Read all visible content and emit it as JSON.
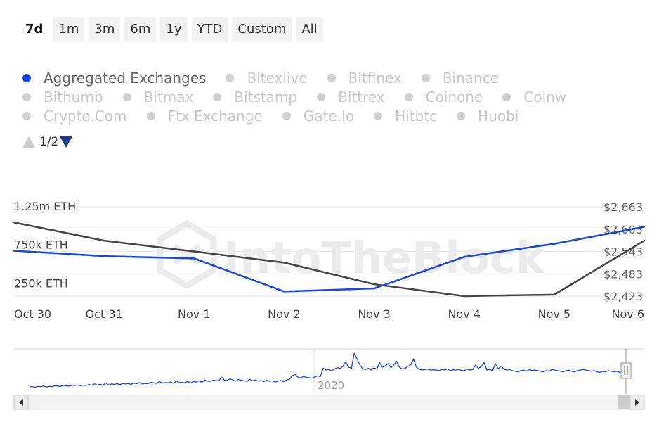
{
  "range_selector": {
    "buttons": [
      "7d",
      "1m",
      "3m",
      "6m",
      "1y",
      "YTD",
      "Custom",
      "All"
    ],
    "active": "7d"
  },
  "legend": {
    "rows": [
      [
        "Aggregated Exchanges",
        "Bitexlive",
        "Bitfinex",
        "Binance"
      ],
      [
        "Bithumb",
        "Bitmax",
        "Bitstamp",
        "Bittrex",
        "Coinone",
        "Coinw"
      ],
      [
        "Crypto.Com",
        "Ftx Exchange",
        "Gate.Io",
        "Hitbtc",
        "Huobi"
      ]
    ],
    "active": "Aggregated Exchanges",
    "pager": "1/2"
  },
  "watermark": "IntoTheBlock",
  "colors": {
    "volume_line": "#1546e8",
    "price_line": "#444444",
    "navigator_line": "#1546e8",
    "grid": "#e6e6e6"
  },
  "chart_data": {
    "type": "line",
    "x": [
      "Oct 30",
      "Oct 31",
      "Nov 1",
      "Nov 2",
      "Nov 3",
      "Nov 4",
      "Nov 5",
      "Nov 6"
    ],
    "y_left": {
      "ticks": [
        "1.25m ETH",
        "750k ETH",
        "250k ETH"
      ],
      "tick_values": [
        1250000,
        750000,
        250000
      ],
      "range": [
        180000,
        1350000
      ]
    },
    "y_right": {
      "ticks": [
        "$2,663",
        "$2,603",
        "$2,543",
        "$2,483",
        "$2,423"
      ],
      "tick_values": [
        2663,
        2603,
        2543,
        2483,
        2423
      ],
      "range": [
        2423,
        2663
      ]
    },
    "series": [
      {
        "axis": "left",
        "values": [
          770000,
          700000,
          670000,
          240000,
          280000,
          690000,
          860000,
          1080000
        ]
      },
      {
        "axis": "right",
        "values": [
          2621,
          2572,
          2543,
          2513,
          2455,
          2423,
          2427,
          2572
        ]
      }
    ],
    "navigator": {
      "label": "2020",
      "values": [
        24,
        25,
        23,
        26,
        25,
        27,
        24,
        26,
        25,
        28,
        27,
        26,
        29,
        28,
        27,
        30,
        29,
        31,
        28,
        30,
        29,
        32,
        30,
        34,
        31,
        33,
        30,
        38,
        31,
        34,
        33,
        35,
        32,
        36,
        34,
        35,
        33,
        37,
        35,
        39,
        34,
        36,
        35,
        40,
        38,
        36,
        42,
        37,
        39,
        38,
        41,
        36,
        44,
        39,
        40,
        38,
        43,
        37,
        42,
        41,
        45,
        40,
        48,
        44,
        43,
        47,
        46,
        45,
        58,
        48,
        46,
        52,
        48,
        44,
        49,
        47,
        45,
        43,
        50,
        45,
        48,
        44,
        46,
        42,
        47,
        43,
        45,
        41,
        44,
        46,
        42,
        48,
        50,
        62,
        68,
        58,
        55,
        60,
        57,
        56,
        54,
        58,
        62,
        60,
        88,
        82,
        84,
        80,
        86,
        90,
        88,
        95,
        110,
        92,
        88,
        140,
        120,
        100,
        86,
        84,
        88,
        82,
        90,
        85,
        108,
        92,
        96,
        104,
        90,
        100,
        112,
        92,
        86,
        88,
        95,
        100,
        120,
        92,
        86,
        82,
        84,
        85,
        82,
        83,
        82,
        80,
        84,
        82,
        86,
        80,
        83,
        82,
        84,
        81,
        80,
        86,
        82,
        84,
        100,
        88,
        94,
        108,
        82,
        84,
        80,
        104,
        86,
        96,
        85,
        82,
        84,
        80,
        78,
        76,
        80,
        82,
        78,
        84,
        80,
        82,
        80,
        78,
        76,
        80,
        78,
        84,
        82,
        80,
        78,
        76,
        80,
        82,
        78,
        76,
        80,
        82,
        84,
        82,
        80,
        78,
        80,
        76,
        74,
        78,
        76,
        80,
        78,
        76,
        78,
        74,
        78,
        70
      ]
    }
  }
}
